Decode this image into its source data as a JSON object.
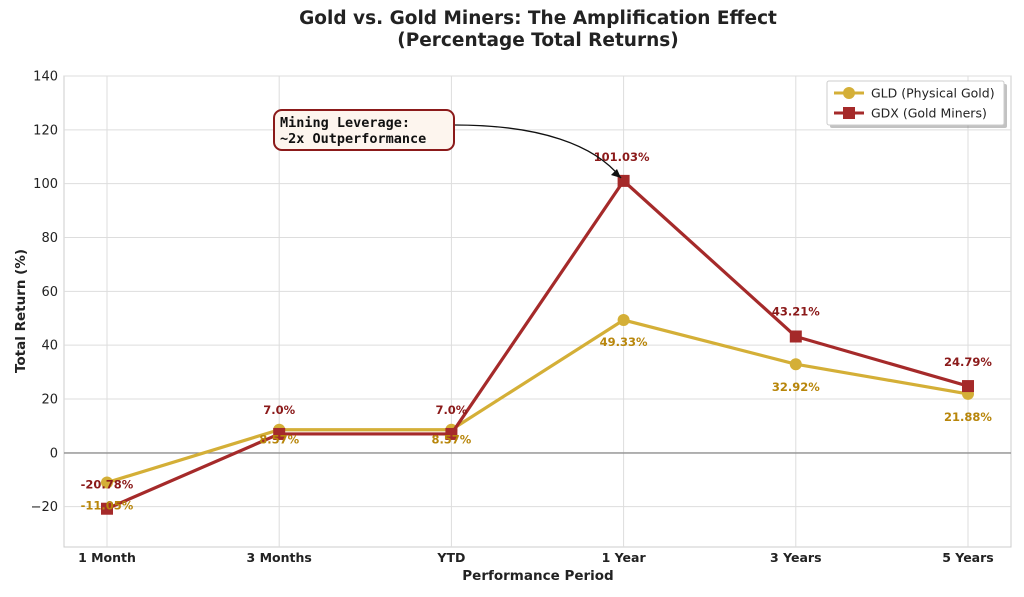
{
  "chart_data": {
    "type": "line",
    "title_line1": "Gold vs. Gold Miners: The Amplification Effect",
    "title_line2": "(Percentage Total Returns)",
    "xlabel": "Performance Period",
    "ylabel": "Total Return (%)",
    "categories": [
      "1 Month",
      "3 Months",
      "YTD",
      "1 Year",
      "3 Years",
      "5 Years"
    ],
    "ylim": [
      -35,
      140
    ],
    "yticks": [
      -20,
      0,
      20,
      40,
      60,
      80,
      100,
      120,
      140
    ],
    "ytick_labels": [
      "−20",
      "0",
      "20",
      "40",
      "60",
      "80",
      "100",
      "120",
      "140"
    ],
    "grid": true,
    "legend_position": "top-right",
    "series": [
      {
        "name": "GLD (Physical Gold)",
        "values": [
          -11.05,
          8.57,
          8.57,
          49.33,
          32.92,
          21.88
        ],
        "labels": [
          "-11.05%",
          "8.57%",
          "8.57%",
          "49.33%",
          "32.92%",
          "21.88%"
        ],
        "color": "#d4af37",
        "label_color": "#b8860b",
        "marker": "circle"
      },
      {
        "name": "GDX (Gold Miners)",
        "values": [
          -20.78,
          7.0,
          7.0,
          101.03,
          43.21,
          24.79
        ],
        "labels": [
          "-20.78%",
          "7.0%",
          "7.0%",
          "101.03%",
          "43.21%",
          "24.79%"
        ],
        "color": "#a52a2a",
        "label_color": "#8b1a1a",
        "marker": "square"
      }
    ],
    "annotation": {
      "line1": "Mining Leverage:",
      "line2": "~2x Outperformance",
      "border_color": "#8b1a1a",
      "fill_color": "#fdf5ee"
    }
  }
}
